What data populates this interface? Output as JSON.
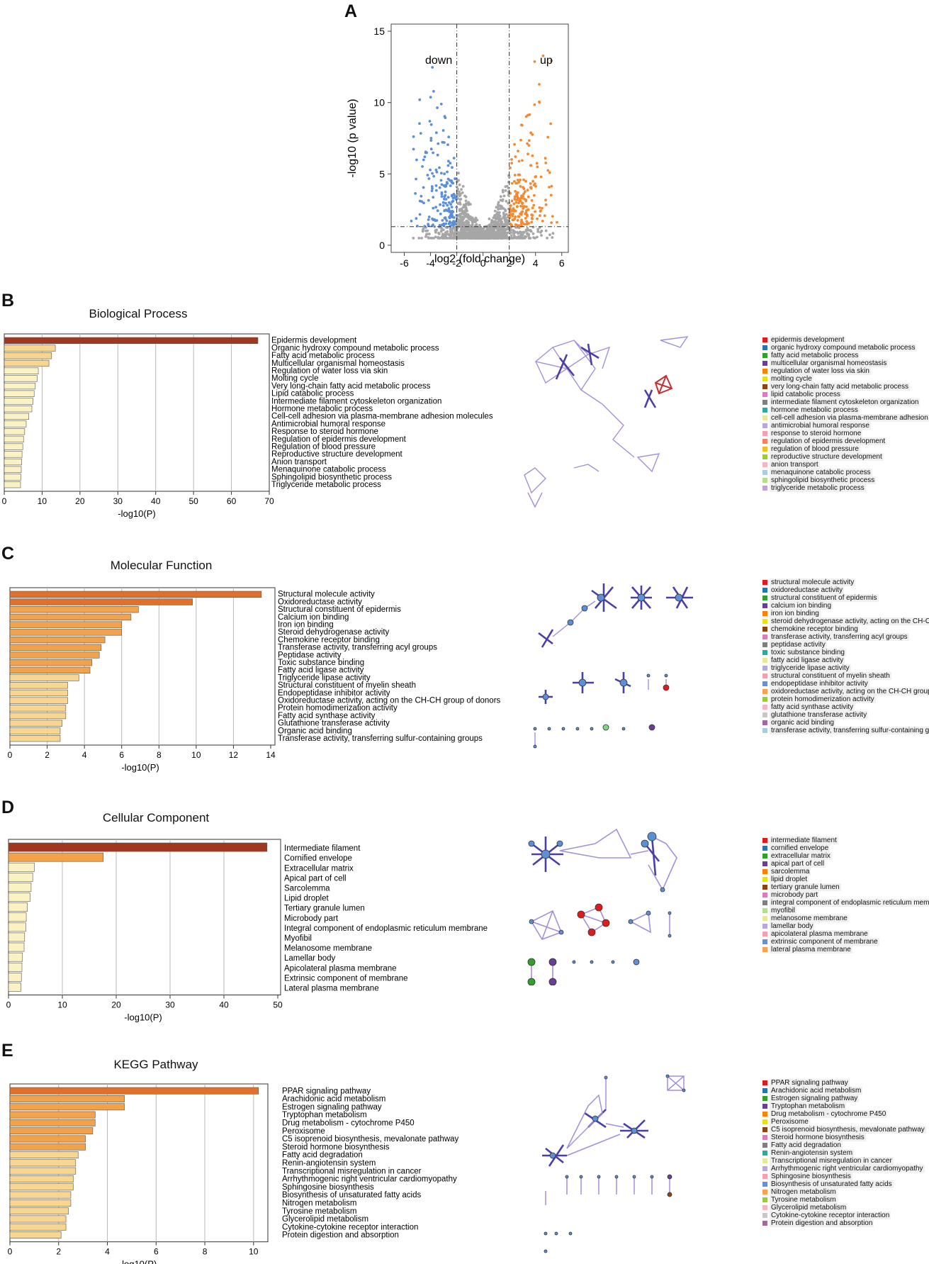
{
  "figure": {
    "panels": {
      "A": "A",
      "B": "B",
      "C": "C",
      "D": "D",
      "E": "E"
    },
    "colors": {
      "bar_dark": "#a0381f",
      "bar_high": "#e0702c",
      "bar_mid": "#f2a24a",
      "bar_low": "#f9d68f",
      "bar_min": "#fbf2c4",
      "down": "#5b8fd6",
      "up": "#f28a32",
      "ns": "#a6a6a6"
    }
  },
  "chart_data": [
    {
      "id": "volcano",
      "type": "scatter",
      "xlabel": "log2 (fold change)",
      "ylabel": "-log10 (p value)",
      "xlim": [
        -7,
        6.5
      ],
      "ylim": [
        -0.5,
        15.5
      ],
      "xticks": [
        "-6",
        "-4",
        "-2",
        "0",
        "2",
        "4",
        "6"
      ],
      "yticks": [
        "0",
        "5",
        "10",
        "15"
      ],
      "fc_threshold": 2,
      "p_threshold": 1.3,
      "labels": {
        "down": "down",
        "up": "up"
      },
      "n_points": 1600
    },
    {
      "id": "bp",
      "type": "bar",
      "orientation": "horizontal",
      "title": "Biological Process",
      "xlabel": "-log10(P)",
      "xlim": [
        0,
        70
      ],
      "xticks": [
        "0",
        "10",
        "20",
        "30",
        "40",
        "50",
        "60",
        "70"
      ],
      "categories": [
        "Epidermis development",
        "Organic hydroxy compound metabolic process",
        "Fatty acid metabolic process",
        "Multicellular organismal homeostasis",
        "Regulation of water loss via skin",
        "Molting cycle",
        "Very long-chain fatty acid metabolic process",
        "Lipid catabolic process",
        "Intermediate filament cytoskeleton organization",
        "Hormone metabolic process",
        "Cell-cell adhesion via plasma-membrane adhesion molecules",
        "Antimicrobial humoral response",
        "Response to steroid hormone",
        "Regulation of epidermis development",
        "Regulation of blood pressure",
        "Reproductive structure development",
        "Anion transport",
        "Menaquinone catabolic process",
        "Sphingolipid biosynthetic process",
        "Triglyceride metabolic process"
      ],
      "values": [
        67,
        13.5,
        12.5,
        11.8,
        9,
        8.7,
        8.2,
        7.9,
        7.6,
        7.3,
        6.5,
        5.8,
        5.4,
        5.1,
        4.9,
        4.7,
        4.6,
        4.5,
        4.4,
        4.3
      ]
    },
    {
      "id": "mf",
      "type": "bar",
      "orientation": "horizontal",
      "title": "Molecular Function",
      "xlabel": "-log10(P)",
      "xlim": [
        0,
        14
      ],
      "xticks": [
        "0",
        "2",
        "4",
        "6",
        "8",
        "10",
        "12",
        "14"
      ],
      "categories": [
        "Structural molecule activity",
        "Oxidoreductase activity",
        "Structural constituent of epidermis",
        "Calcium ion binding",
        "Iron ion binding",
        "Steroid dehydrogenase activity",
        "Chemokine receptor binding",
        "Transferase activity, transferring acyl groups",
        "Peptidase activity",
        "Toxic substance binding",
        "Fatty acid ligase activity",
        "Triglyceride lipase activity",
        "Structural constituent of myelin sheath",
        "Endopeptidase inhibitor activity",
        "Oxidoreductase activity, acting on the CH-CH group of donors",
        "Protein homodimerization activity",
        "Fatty acid synthase activity",
        "Glutathione transferase activity",
        "Organic acid binding",
        "Transferase activity, transferring sulfur-containing groups"
      ],
      "values": [
        13.5,
        9.8,
        6.9,
        6.5,
        6.0,
        6.0,
        5.1,
        4.9,
        4.8,
        4.4,
        4.3,
        3.7,
        3.1,
        3.1,
        3.1,
        3.0,
        3.0,
        2.8,
        2.7,
        2.7
      ]
    },
    {
      "id": "cc",
      "type": "bar",
      "orientation": "horizontal",
      "title": "Cellular Component",
      "xlabel": "-log10(P)",
      "xlim": [
        0,
        50
      ],
      "xticks": [
        "0",
        "10",
        "20",
        "30",
        "40",
        "50"
      ],
      "categories": [
        "Intermediate filament",
        "Cornified envelope",
        "Extracellular matrix",
        "Apical part of cell",
        "Sarcolemma",
        "Lipid droplet",
        "Tertiary granule lumen",
        "Microbody part",
        "Integral component of endoplasmic reticulum membrane",
        "Myofibil",
        "Melanosome membrane",
        "Lamellar body",
        "Apicolateral plasma membrane",
        "Extrinsic component of membrane",
        "Lateral plasma membrane"
      ],
      "values": [
        48,
        17.6,
        4.8,
        4.5,
        4.2,
        4.0,
        3.5,
        3.3,
        3.2,
        3.0,
        2.9,
        2.6,
        2.5,
        2.4,
        2.3
      ]
    },
    {
      "id": "kegg",
      "type": "bar",
      "orientation": "horizontal",
      "title": "KEGG Pathway",
      "xlabel": "-log10(P)",
      "xlim": [
        0,
        10.5
      ],
      "xticks": [
        "0",
        "2",
        "4",
        "6",
        "8",
        "10"
      ],
      "categories": [
        "PPAR signaling pathway",
        "Arachidonic acid metabolism",
        "Estrogen signaling pathway",
        "Tryptophan metabolism",
        "Drug metabolism - cytochrome P450",
        "Peroxisome",
        "C5 isoprenoid biosynthesis, mevalonate pathway",
        "Steroid hormone biosynthesis",
        "Fatty acid degradation",
        "Renin-angiotensin system",
        "Transcriptional misregulation in cancer",
        "Arrhythmogenic right ventricular cardiomyopathy",
        "Sphingosine biosynthesis",
        "Biosynthesis of unsaturated fatty acids",
        "Nitrogen metabolism",
        "Tyrosine metabolism",
        "Glycerolipid metabolism",
        "Cytokine-cytokine receptor interaction",
        "Protein digestion and absorption"
      ],
      "values": [
        10.2,
        4.7,
        4.7,
        3.5,
        3.5,
        3.4,
        3.1,
        3.1,
        2.8,
        2.7,
        2.7,
        2.6,
        2.6,
        2.5,
        2.5,
        2.4,
        2.3,
        2.3,
        2.1
      ]
    }
  ],
  "legends": {
    "bp": {
      "items": [
        "epidermis development",
        "organic hydroxy compound metabolic process",
        "fatty acid metabolic process",
        "multicellular organismal homeostasis",
        "regulation of water loss via skin",
        "molting cycle",
        "very long-chain fatty acid metabolic process",
        "lipid catabolic process",
        "intermediate filament cytoskeleton organization",
        "hormone metabolic process",
        "cell-cell adhesion via plasma-membrane adhesion m",
        "antimicrobial humoral response",
        "response to steroid hormone",
        "regulation of epidermis development",
        "regulation of blood pressure",
        "reproductive structure development",
        "anion transport",
        "menaquinone catabolic process",
        "sphingolipid biosynthetic process",
        "triglyceride metabolic process"
      ],
      "colors": [
        "#e31a1c",
        "#1f78b4",
        "#33a02c",
        "#6a3d9a",
        "#ff7f00",
        "#e6e600",
        "#8b4513",
        "#e377c2",
        "#7f7f7f",
        "#2ca9a0",
        "#e7e89a",
        "#b7a6e6",
        "#f5a0b0",
        "#ff7f50",
        "#f0c020",
        "#9acd32",
        "#f4b6c2",
        "#a6cee3",
        "#b2df8a",
        "#c3a0d8"
      ]
    },
    "mf": {
      "items": [
        "structural molecule activity",
        "oxidoreductase activity",
        "structural constituent of epidermis",
        "calcium ion binding",
        "iron ion binding",
        "steroid dehydrogenase activity, acting on the CH-OH",
        "chemokine receptor binding",
        "transferase activity, transferring acyl groups",
        "peptidase activity",
        "toxic substance binding",
        "fatty acid ligase activity",
        "triglyceride lipase activity",
        "structural constituent of myelin sheath",
        "endopeptidase inhibitor activity",
        "oxidoreductase activity, acting on the CH-CH group o",
        "protein homodimerization activity",
        "fatty acid synthase activity",
        "glutathione transferase activity",
        "organic acid binding",
        "transferase activity, transferring sulfur-containing grou"
      ],
      "colors": [
        "#e31a1c",
        "#1f78b4",
        "#33a02c",
        "#6a3d9a",
        "#ff7f00",
        "#e6e600",
        "#8b4513",
        "#e377c2",
        "#7f7f7f",
        "#2ca9a0",
        "#e7e89a",
        "#b7a6e6",
        "#f5a0b0",
        "#6b8fd6",
        "#ff9f50",
        "#9acd32",
        "#f4b6c2",
        "#c8c8c8",
        "#a06aa0",
        "#a6cee3"
      ]
    },
    "cc": {
      "items": [
        "intermediate filament",
        "cornified envelope",
        "extracellular matrix",
        "apical part of cell",
        "sarcolemma",
        "lipid droplet",
        "tertiary granule lumen",
        "microbody part",
        "integral component of endoplasmic reticulum membra",
        "myofibil",
        "melanosome membrane",
        "lamellar body",
        "apicolateral plasma membrane",
        "extrinsic component of membrane",
        "lateral plasma membrane"
      ],
      "colors": [
        "#e31a1c",
        "#1f78b4",
        "#33a02c",
        "#6a3d9a",
        "#ff7f00",
        "#e6e600",
        "#8b4513",
        "#e377c2",
        "#7f7f7f",
        "#b2df8a",
        "#e7e89a",
        "#b7a6e6",
        "#f5a0b0",
        "#6b8fd6",
        "#ff9f50"
      ]
    },
    "kegg": {
      "items": [
        "PPAR signaling pathway",
        "Arachidonic acid metabolism",
        "Estrogen signaling pathway",
        "Tryptophan metabolism",
        "Drug metabolism - cytochrome P450",
        "Peroxisome",
        "C5 isoprenoid biosynthesis, mevalonate pathway",
        "Steroid hormone biosynthesis",
        "Fatty acid degradation",
        "Renin-angiotensin system",
        "Transcriptional misregulation in cancer",
        "Arrhythmogenic right ventricular cardiomyopathy",
        "Sphingosine biosynthesis",
        "Biosynthesis of unsaturated fatty acids",
        "Nitrogen metabolism",
        "Tyrosine metabolism",
        "Glycerolipid metabolism",
        "Cytokine-cytokine receptor interaction",
        "Protein digestion and absorption"
      ],
      "colors": [
        "#e31a1c",
        "#1f78b4",
        "#33a02c",
        "#6a3d9a",
        "#ff7f00",
        "#e6e600",
        "#8b4513",
        "#e377c2",
        "#7f7f7f",
        "#2ca9a0",
        "#e7e89a",
        "#b7a6e6",
        "#f5a0b0",
        "#6b8fd6",
        "#ff9f50",
        "#9acd32",
        "#f4b6c2",
        "#c8c8c8",
        "#a06aa0"
      ]
    }
  }
}
